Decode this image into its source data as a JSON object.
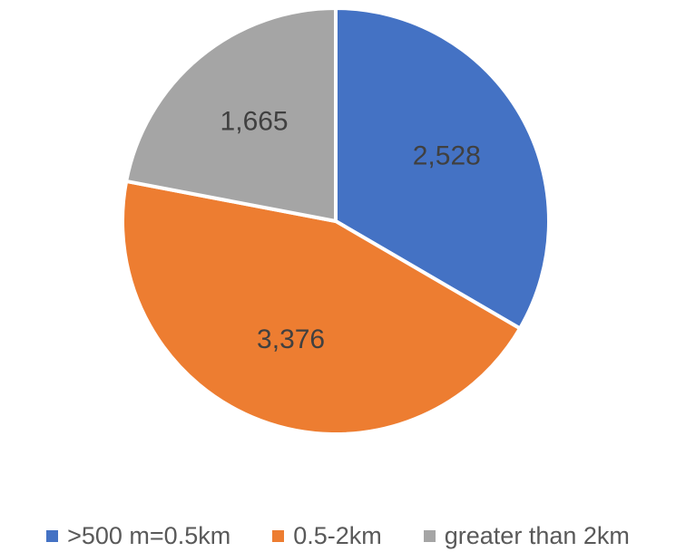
{
  "chart_data": {
    "type": "pie",
    "categories": [
      ">500 m=0.5km",
      "0.5-2km",
      "greater than 2km"
    ],
    "values": [
      2528,
      3376,
      1665
    ],
    "labels": [
      "2,528",
      "3,376",
      "1,665"
    ],
    "colors": [
      "#4472C4",
      "#ED7D31",
      "#A5A5A5"
    ],
    "start_angle_deg": 0,
    "direction": "clockwise",
    "legend_position": "bottom"
  }
}
